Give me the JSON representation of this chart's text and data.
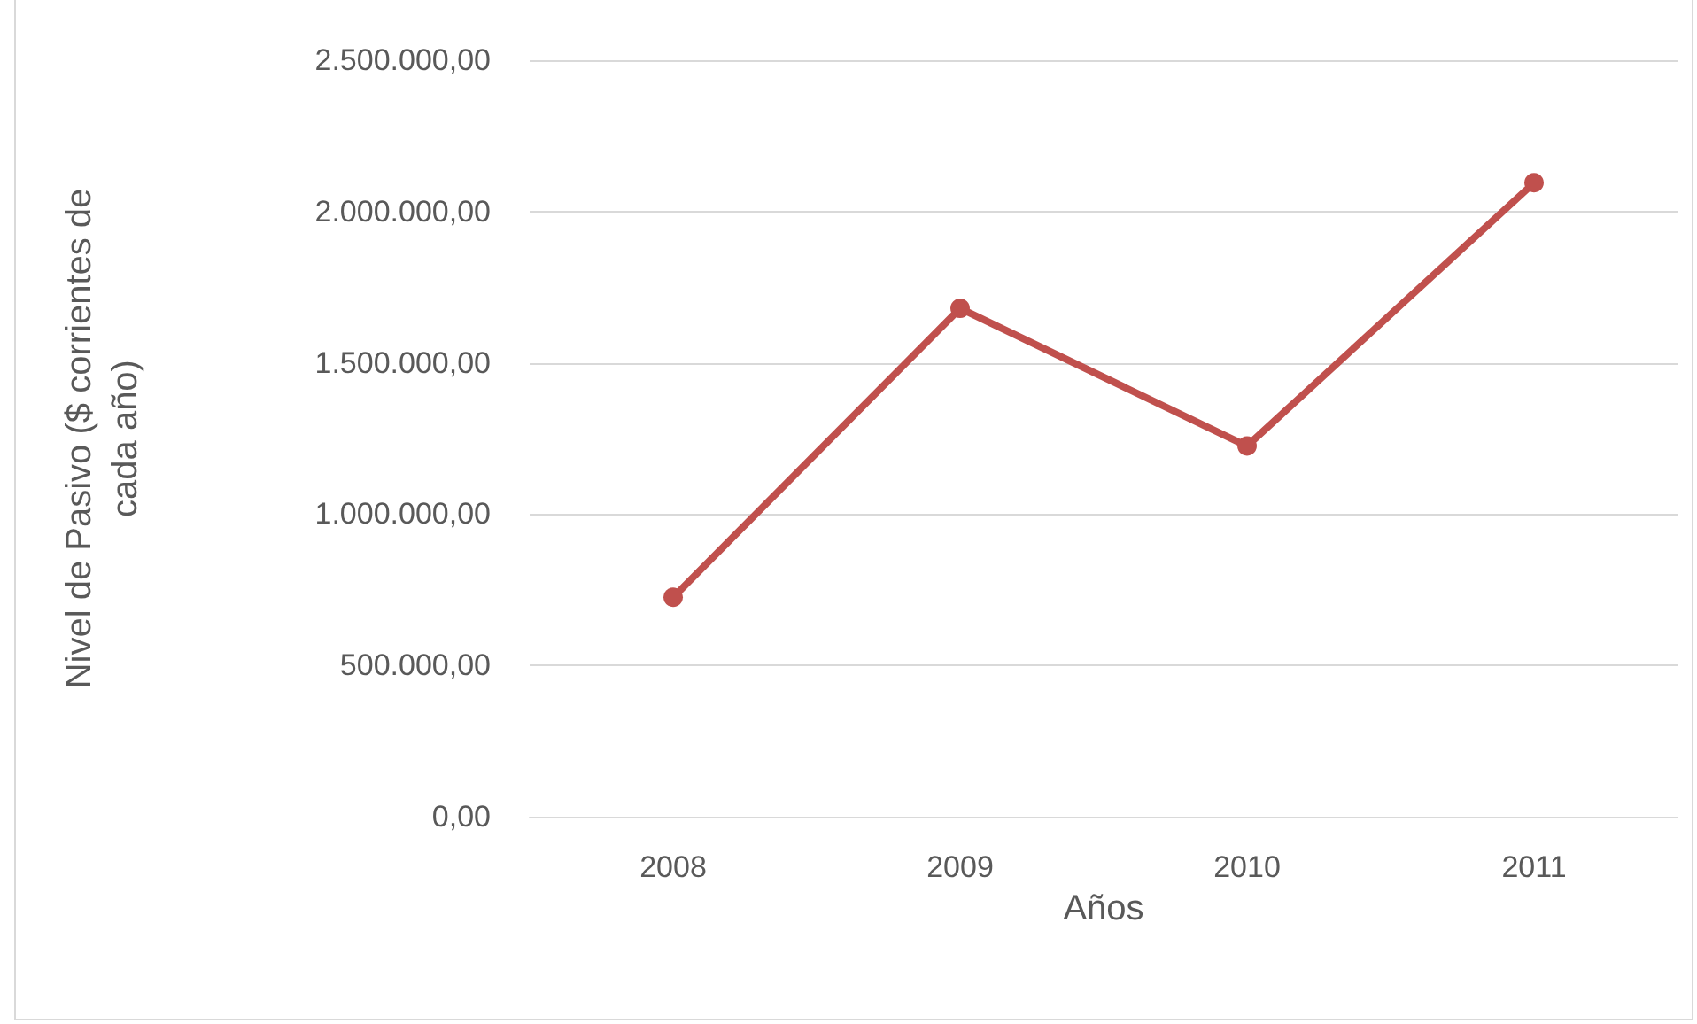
{
  "chart_data": {
    "type": "line",
    "xlabel": "Años",
    "ylabel": "Nivel de Pasivo ($ corrientes de cada año)",
    "categories": [
      "2008",
      "2009",
      "2010",
      "2011"
    ],
    "series": [
      {
        "color": "#c0504d",
        "values": [
          725000,
          1680000,
          1225000,
          2095000
        ]
      }
    ],
    "ylim": [
      0,
      2500000
    ],
    "yticks": [
      {
        "value": 0,
        "label": "0,00"
      },
      {
        "value": 500000,
        "label": "500.000,00"
      },
      {
        "value": 1000000,
        "label": "1.000.000,00"
      },
      {
        "value": 1500000,
        "label": "1.500.000,00"
      },
      {
        "value": 2000000,
        "label": "2.000.000,00"
      },
      {
        "value": 2500000,
        "label": "2.500.000,00"
      }
    ],
    "grid": "y",
    "marker": "circle",
    "line_style": "solid"
  }
}
